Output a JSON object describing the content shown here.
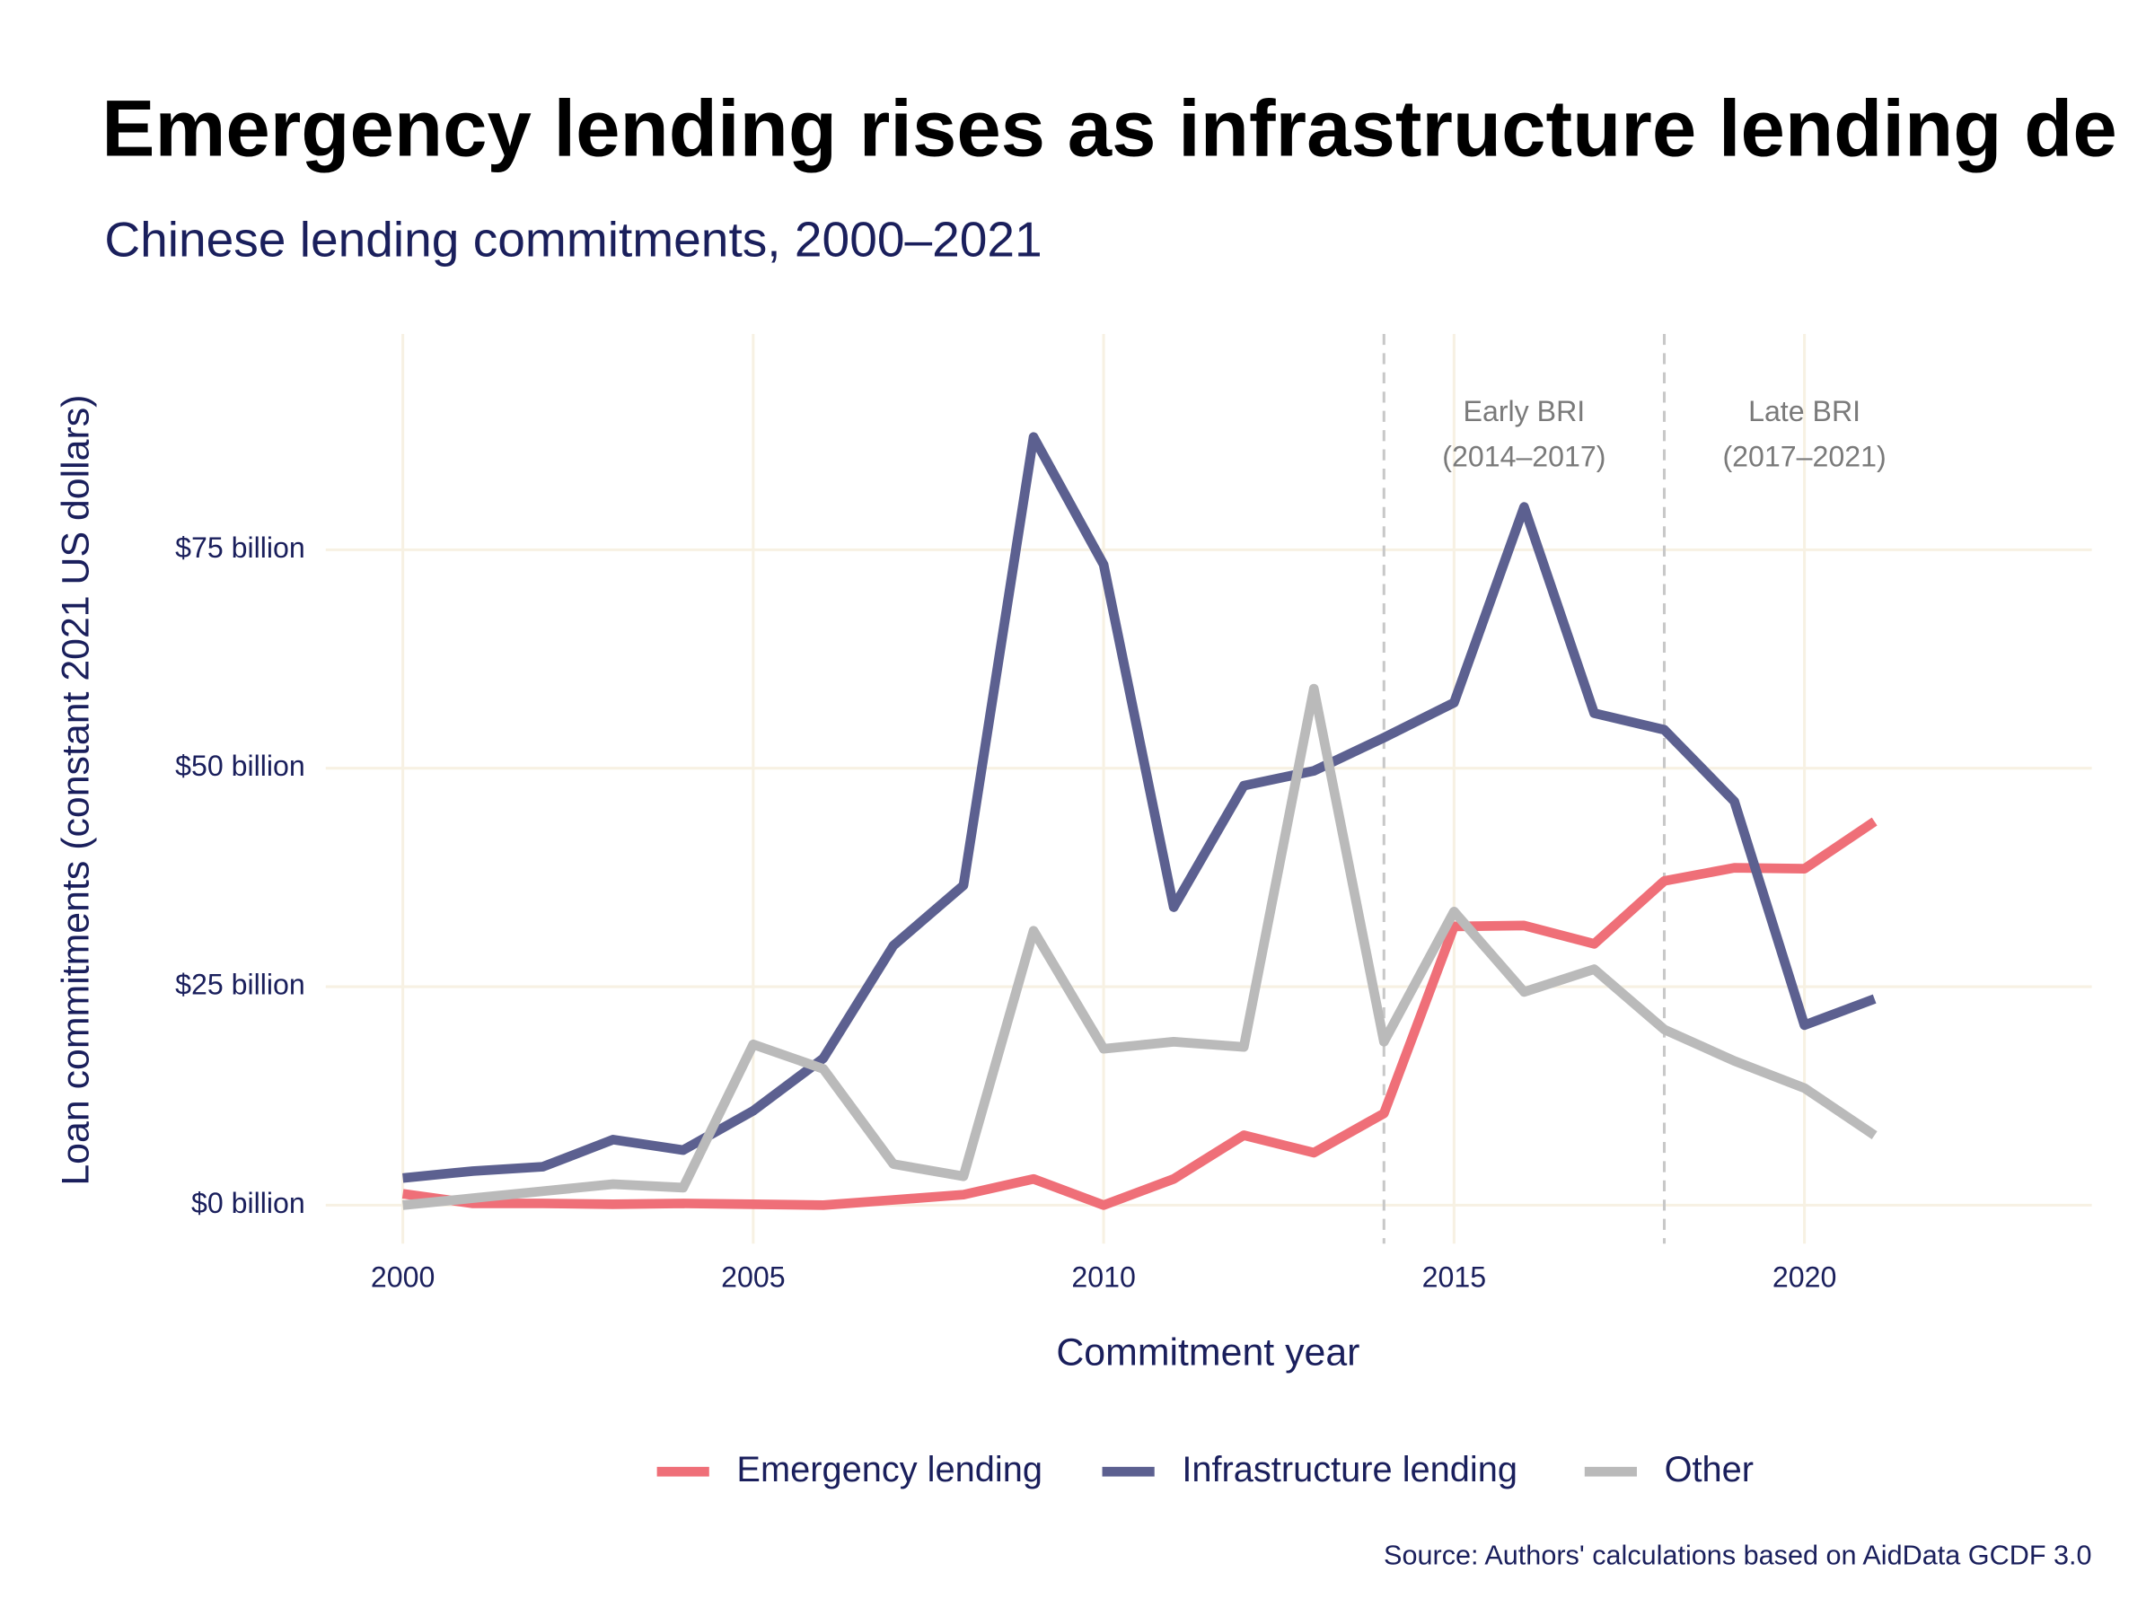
{
  "chart_data": {
    "type": "line",
    "title": "Emergency lending rises as infrastructure lending de",
    "subtitle": "Chinese lending commitments, 2000–2021",
    "x_label": "Commitment year",
    "y_label": "Loan commitments (constant 2021 US dollars)",
    "source": "Source: Authors' calculations based on AidData GCDF 3.0",
    "x": [
      2000,
      2001,
      2002,
      2003,
      2004,
      2005,
      2006,
      2007,
      2008,
      2009,
      2010,
      2011,
      2012,
      2013,
      2014,
      2015,
      2016,
      2017,
      2018,
      2019,
      2020,
      2021
    ],
    "series": [
      {
        "name": "Emergency lending",
        "color": "#ef6f78",
        "values": [
          1.3,
          0.2,
          0.2,
          0.1,
          0.2,
          0.1,
          0.0,
          0.6,
          1.2,
          3.0,
          0.0,
          3.0,
          8.0,
          6.0,
          10.5,
          31.9,
          32.0,
          29.9,
          37.1,
          38.6,
          38.5,
          43.9
        ]
      },
      {
        "name": "Infrastructure lending",
        "color": "#5c6090",
        "values": [
          3.1,
          3.9,
          4.4,
          7.5,
          6.3,
          10.8,
          16.8,
          29.7,
          36.6,
          87.9,
          73.3,
          34.1,
          48.0,
          49.7,
          53.5,
          57.5,
          79.9,
          56.3,
          54.4,
          46.2,
          20.6,
          23.6
        ]
      },
      {
        "name": "Other",
        "color": "#bababa",
        "values": [
          0.0,
          0.8,
          1.6,
          2.4,
          2.0,
          18.4,
          15.6,
          4.7,
          3.3,
          31.4,
          17.9,
          18.7,
          18.1,
          59.1,
          18.7,
          33.6,
          24.4,
          27.0,
          20.1,
          16.5,
          13.4,
          8.0
        ]
      }
    ],
    "xlim": [
      1998.9,
      2024.1
    ],
    "xticks": [
      2000,
      2005,
      2010,
      2015,
      2020
    ],
    "ylim": [
      -4.4,
      99.7
    ],
    "yticks": [
      {
        "value": 0,
        "label": "$0 billion"
      },
      {
        "value": 25,
        "label": "$25 billion"
      },
      {
        "value": 50,
        "label": "$50 billion"
      },
      {
        "value": 75,
        "label": "$75 billion"
      }
    ],
    "grid": true,
    "legend": "bottom",
    "vlines": [
      2014,
      2018
    ],
    "annotations": [
      {
        "x": 2016,
        "lines": [
          "Early BRI",
          "(2014–2017)"
        ]
      },
      {
        "x": 2020,
        "lines": [
          "Late BRI",
          "(2017–2021)"
        ]
      }
    ]
  }
}
